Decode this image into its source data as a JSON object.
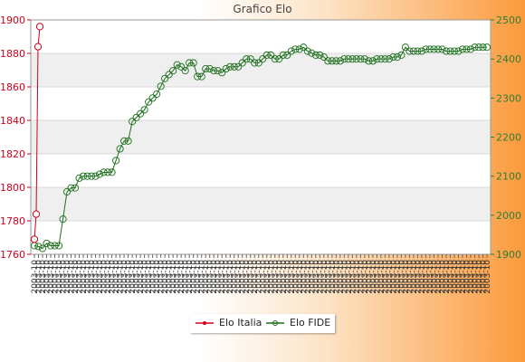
{
  "chart_data": {
    "type": "line",
    "title": "Grafico Elo",
    "y_left": {
      "range": [
        1760,
        1900
      ],
      "ticks": [
        1760,
        1780,
        1800,
        1820,
        1840,
        1860,
        1880,
        1900
      ],
      "color": "#d0021b"
    },
    "y_right": {
      "range": [
        1900,
        2500
      ],
      "ticks": [
        1900,
        2000,
        2100,
        2200,
        2300,
        2400,
        2500
      ],
      "color": "#2e7d32"
    },
    "grid": true,
    "legend_position": "bottom-center",
    "x_label_sample": "2003-10",
    "series": [
      {
        "name": "Elo Italia",
        "axis": "left",
        "color": "#d0021b",
        "values": [
          1769,
          1784,
          1884,
          1896
        ]
      },
      {
        "name": "Elo FIDE",
        "axis": "right",
        "color": "#1b6e1b",
        "values": [
          1922,
          1920,
          1915,
          1928,
          1922,
          1922,
          1922,
          1990,
          2060,
          2070,
          2070,
          2095,
          2100,
          2100,
          2100,
          2100,
          2105,
          2110,
          2110,
          2110,
          2140,
          2170,
          2190,
          2190,
          2240,
          2250,
          2260,
          2270,
          2290,
          2300,
          2310,
          2330,
          2350,
          2360,
          2370,
          2385,
          2380,
          2370,
          2390,
          2390,
          2355,
          2355,
          2375,
          2375,
          2370,
          2370,
          2365,
          2375,
          2380,
          2380,
          2380,
          2390,
          2400,
          2400,
          2390,
          2390,
          2400,
          2410,
          2410,
          2400,
          2400,
          2410,
          2410,
          2420,
          2425,
          2425,
          2430,
          2420,
          2415,
          2410,
          2410,
          2405,
          2395,
          2395,
          2395,
          2395,
          2400,
          2400,
          2400,
          2400,
          2400,
          2400,
          2395,
          2395,
          2400,
          2400,
          2400,
          2400,
          2405,
          2405,
          2410,
          2430,
          2420,
          2420,
          2420,
          2420,
          2425,
          2425,
          2425,
          2425,
          2425,
          2420,
          2420,
          2420,
          2420,
          2425,
          2425,
          2425,
          2430,
          2430,
          2430,
          2430
        ]
      }
    ]
  }
}
